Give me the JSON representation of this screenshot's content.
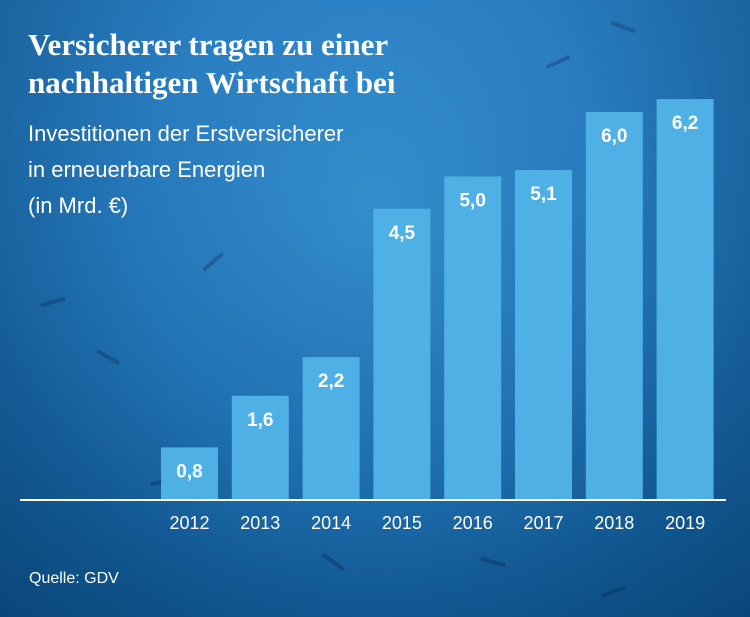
{
  "header": {
    "title_line1": "Versicherer tragen zu einer",
    "title_line2": "nachhaltigen Wirtschaft bei",
    "subtitle_line1": "Investitionen der Erstversicherer",
    "subtitle_line2": "in erneuerbare Energien",
    "subtitle_line3": "(in Mrd. €)"
  },
  "footer": {
    "source": "Quelle: GDV"
  },
  "colors": {
    "bar": "#4fb0e6",
    "axis": "#ffffff",
    "text": "#ffffff"
  },
  "chart_data": {
    "type": "bar",
    "categories": [
      "2012",
      "2013",
      "2014",
      "2015",
      "2016",
      "2017",
      "2018",
      "2019"
    ],
    "values": [
      0.8,
      1.6,
      2.2,
      4.5,
      5.0,
      5.1,
      6.0,
      6.2
    ],
    "value_labels": [
      "0,8",
      "1,6",
      "2,2",
      "4,5",
      "5,0",
      "5,1",
      "6,0",
      "6,2"
    ],
    "title": "Versicherer tragen zu einer nachhaltigen Wirtschaft bei",
    "ylabel": "",
    "xlabel": "",
    "grid": false
  }
}
